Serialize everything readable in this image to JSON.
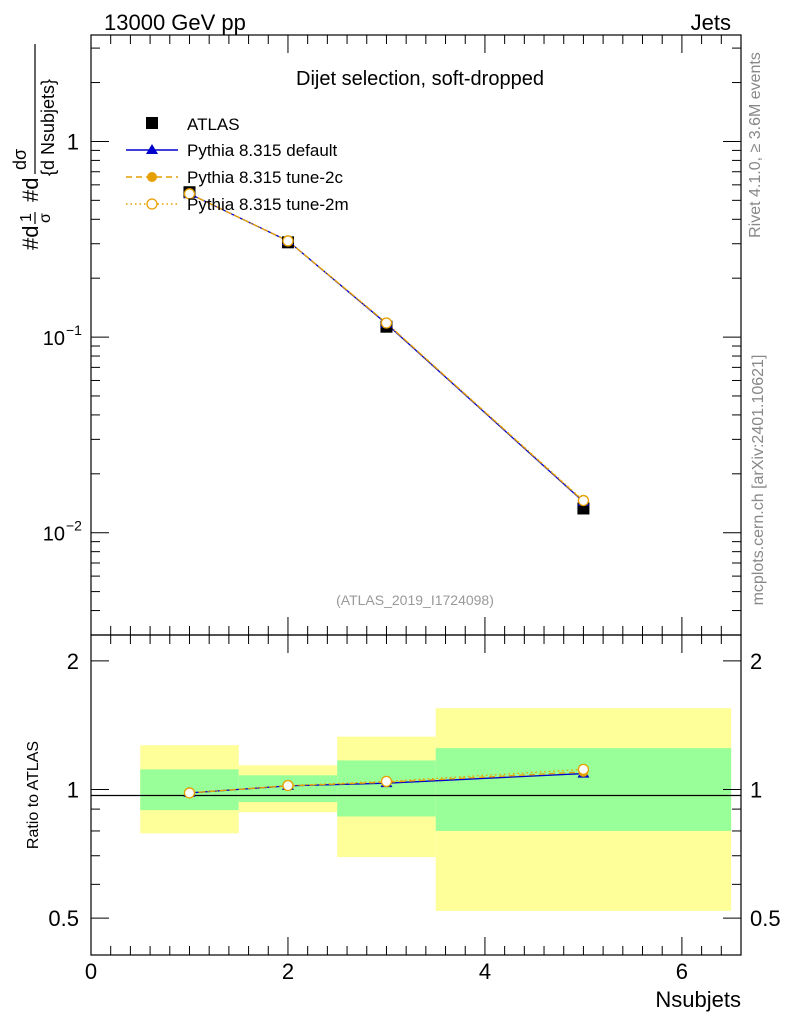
{
  "header": {
    "left": "13000 GeV pp",
    "right": "Jets"
  },
  "side_labels": {
    "top": "Rivet 4.1.0, ≥ 3.6M events",
    "bottom": "mcplots.cern.ch [arXiv:2401.10621]"
  },
  "colors": {
    "data": "#000000",
    "default": "#0000cc",
    "tune2c": "#e69f00",
    "tune2m": "#e69f00",
    "band_inner": "#99ff99",
    "band_outer": "#ffff99"
  },
  "chart_data": [
    {
      "type": "line",
      "title": "Dijet selection, soft-dropped",
      "annotation": "(ATLAS_2019_I1724098)",
      "ylabel": "#d¹/σ #d dσ/{d Nsubjets}",
      "yscale": "log",
      "xlim": [
        0,
        6.6
      ],
      "ylim": [
        0.003,
        3.5
      ],
      "yticks": [
        {
          "value": 1,
          "label": "1"
        },
        {
          "value": 0.1,
          "label": "10",
          "exp": "−1"
        },
        {
          "value": 0.01,
          "label": "10",
          "exp": "−2"
        }
      ],
      "x": [
        1,
        2,
        3,
        5
      ],
      "series": [
        {
          "name": "ATLAS",
          "style": "data",
          "values": [
            0.55,
            0.305,
            0.113,
            0.0133
          ]
        },
        {
          "name": "Pythia 8.315 default",
          "style": "default",
          "values": [
            0.54,
            0.31,
            0.117,
            0.0144
          ]
        },
        {
          "name": "Pythia 8.315 tune-2c",
          "style": "tune2c",
          "values": [
            0.54,
            0.31,
            0.118,
            0.0145
          ]
        },
        {
          "name": "Pythia 8.315 tune-2m",
          "style": "tune2m",
          "values": [
            0.54,
            0.31,
            0.118,
            0.0146
          ]
        }
      ]
    },
    {
      "type": "line",
      "xlabel": "Nsubjets",
      "ylabel": "Ratio to ATLAS",
      "xlim": [
        0,
        6.6
      ],
      "ylim": [
        0.41,
        2.3
      ],
      "yticks": [
        {
          "value": 0.5,
          "label": "0.5"
        },
        {
          "value": 1,
          "label": "1"
        },
        {
          "value": 2,
          "label": "2"
        }
      ],
      "xticks": [
        {
          "value": 0,
          "label": "0"
        },
        {
          "value": 2,
          "label": "2"
        },
        {
          "value": 4,
          "label": "4"
        },
        {
          "value": 6,
          "label": "6"
        }
      ],
      "bands": [
        {
          "x0": 0.5,
          "x1": 1.5,
          "inner": [
            0.895,
            1.115
          ],
          "outer": [
            0.79,
            1.27
          ]
        },
        {
          "x0": 1.5,
          "x1": 2.5,
          "inner": [
            0.935,
            1.08
          ],
          "outer": [
            0.885,
            1.14
          ]
        },
        {
          "x0": 2.5,
          "x1": 3.5,
          "inner": [
            0.865,
            1.17
          ],
          "outer": [
            0.695,
            1.33
          ]
        },
        {
          "x0": 3.5,
          "x1": 6.5,
          "inner": [
            0.8,
            1.25
          ],
          "outer": [
            0.52,
            1.55
          ]
        }
      ],
      "x": [
        1,
        2,
        3,
        5
      ],
      "series": [
        {
          "name": "Pythia 8.315 default",
          "style": "default",
          "values": [
            0.982,
            1.02,
            1.035,
            1.09
          ]
        },
        {
          "name": "Pythia 8.315 tune-2c",
          "style": "tune2c",
          "values": [
            0.982,
            1.02,
            1.04,
            1.1
          ]
        },
        {
          "name": "Pythia 8.315 tune-2m",
          "style": "tune2m",
          "values": [
            0.982,
            1.022,
            1.045,
            1.115
          ]
        }
      ]
    }
  ]
}
